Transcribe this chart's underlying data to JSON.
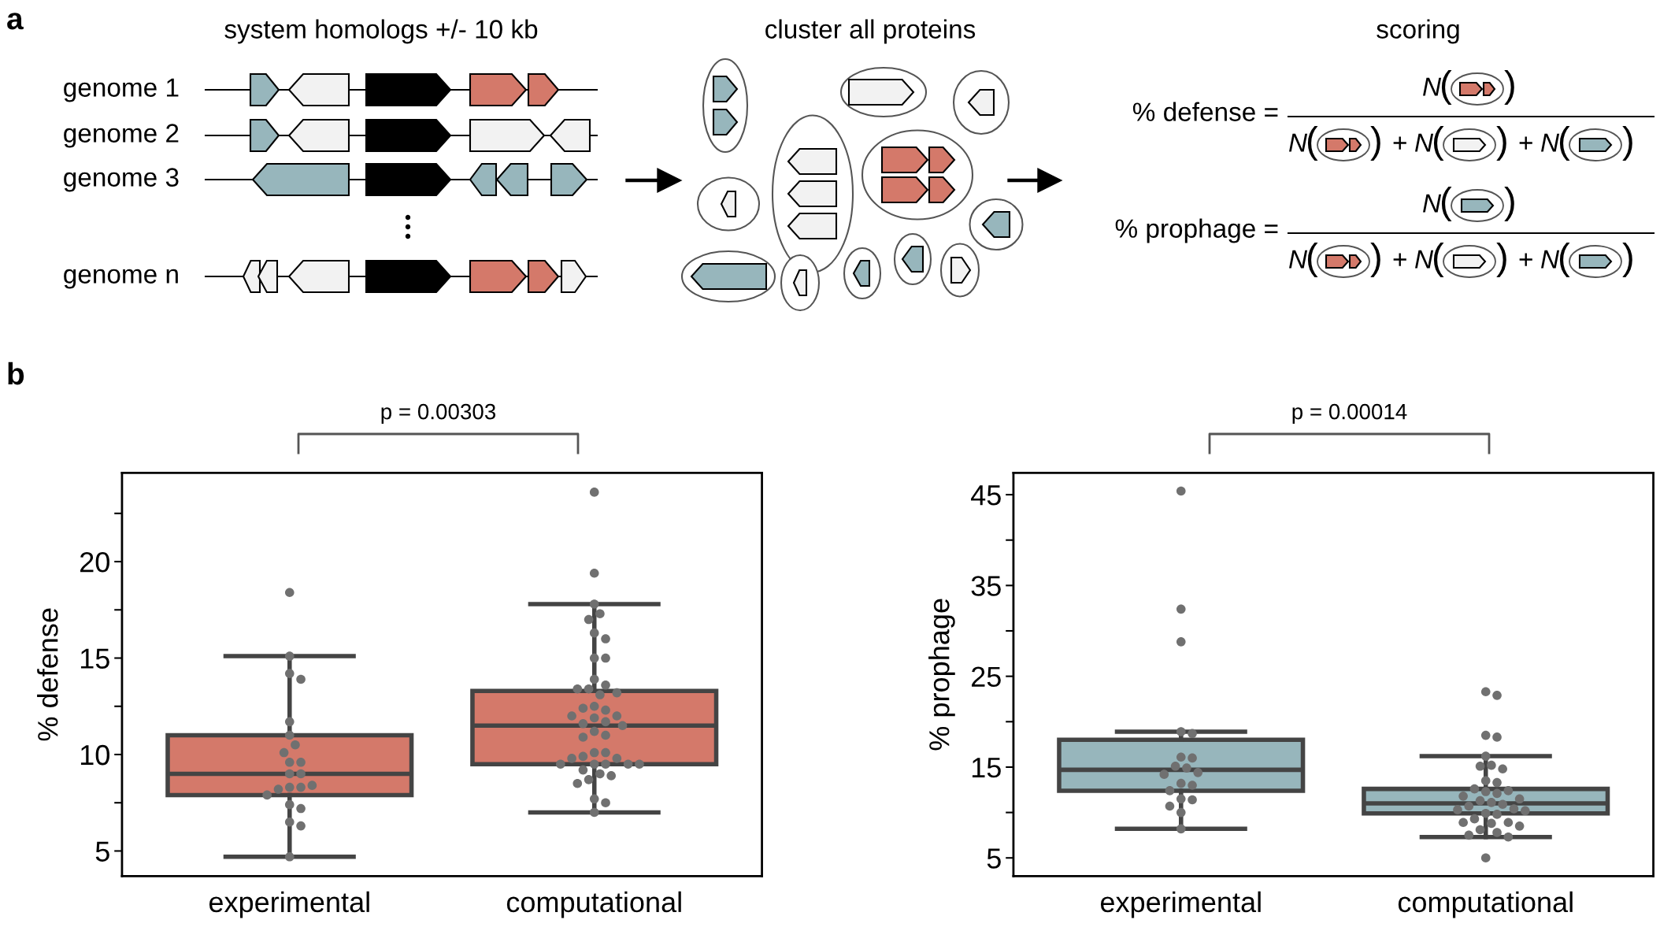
{
  "chart_data": [
    {
      "type": "other",
      "annotations": [
        "a",
        "system homologs +/- 10 kb",
        "genome 1",
        "genome 2",
        "genome 3",
        "genome n",
        "cluster all proteins",
        "scoring",
        "% defense =",
        "% prophage =",
        "N",
        "(",
        ")",
        "+"
      ]
    },
    {
      "type": "box",
      "ylabel": "% defense",
      "categories": [
        "experimental",
        "computational"
      ],
      "ylim": [
        3.7,
        24.6
      ],
      "yticks": [
        5,
        {
          "value": 7.5,
          "label": null
        },
        10,
        {
          "value": 12.5,
          "label": null
        },
        15,
        {
          "value": 17.5,
          "label": null
        },
        20,
        {
          "value": 22.5,
          "label": null
        }
      ],
      "grid": false,
      "marker": "circle",
      "annotations": [
        "b",
        "p = 0.00303"
      ],
      "series": [
        {
          "type": "box",
          "color": "#d4796a",
          "boxes": [
            {
              "low": 4.7,
              "q1": 7.9,
              "median": 9.0,
              "q3": 11.0,
              "high": 15.1
            },
            {
              "low": 7.0,
              "q1": 9.5,
              "median": 11.5,
              "q3": 13.3,
              "high": 17.8
            }
          ]
        },
        {
          "type": "scatter",
          "color": "#707070",
          "x": [
            "experimental",
            "experimental",
            "experimental",
            "experimental",
            "experimental",
            "experimental",
            "experimental",
            "experimental",
            "experimental",
            "experimental",
            "experimental",
            "experimental",
            "experimental",
            "experimental",
            "experimental",
            "experimental",
            "experimental",
            "experimental",
            "experimental",
            "experimental",
            "experimental",
            "experimental"
          ],
          "values": [
            18.4,
            15.1,
            14.2,
            13.9,
            11.7,
            11.0,
            10.5,
            10.1,
            9.6,
            9.6,
            9.0,
            9.0,
            8.3,
            8.3,
            8.2,
            8.4,
            7.9,
            7.4,
            7.2,
            6.5,
            6.3,
            4.7
          ]
        },
        {
          "type": "scatter",
          "color": "#707070",
          "x": [
            "computational",
            "computational",
            "computational",
            "computational",
            "computational",
            "computational",
            "computational",
            "computational",
            "computational",
            "computational",
            "computational",
            "computational",
            "computational",
            "computational",
            "computational",
            "computational",
            "computational",
            "computational",
            "computational",
            "computational",
            "computational",
            "computational",
            "computational",
            "computational",
            "computational",
            "computational",
            "computational",
            "computational",
            "computational",
            "computational",
            "computational",
            "computational",
            "computational",
            "computational",
            "computational",
            "computational",
            "computational",
            "computational",
            "computational",
            "computational",
            "computational",
            "computational",
            "computational",
            "computational",
            "computational"
          ],
          "values": [
            23.6,
            19.4,
            17.8,
            17.3,
            17.0,
            16.3,
            16.0,
            15.0,
            15.0,
            13.9,
            13.6,
            13.4,
            13.4,
            13.2,
            13.1,
            12.5,
            12.3,
            12.4,
            12.0,
            11.9,
            12.0,
            11.7,
            11.6,
            11.5,
            11.2,
            11.0,
            10.9,
            10.1,
            10.1,
            9.9,
            9.8,
            9.8,
            9.5,
            9.5,
            9.5,
            9.5,
            9.5,
            9.2,
            9.0,
            8.9,
            8.7,
            8.5,
            7.7,
            7.5,
            7.0
          ]
        }
      ]
    },
    {
      "type": "box",
      "ylabel": "% prophage",
      "categories": [
        "experimental",
        "computational"
      ],
      "ylim": [
        3.0,
        47.4
      ],
      "yticks": [
        5,
        {
          "value": 10,
          "label": null
        },
        15,
        {
          "value": 20,
          "label": null
        },
        25,
        {
          "value": 30,
          "label": null
        },
        35,
        {
          "value": 40,
          "label": null
        },
        45
      ],
      "grid": false,
      "marker": "circle",
      "annotations": [
        "p = 0.00014"
      ],
      "series": [
        {
          "type": "box",
          "color": "#97b6bc",
          "boxes": [
            {
              "low": 8.2,
              "q1": 12.4,
              "median": 14.7,
              "q3": 18.0,
              "high": 18.9
            },
            {
              "low": 7.3,
              "q1": 9.9,
              "median": 11.0,
              "q3": 12.6,
              "high": 16.2
            }
          ]
        },
        {
          "type": "scatter",
          "color": "#707070",
          "x": [
            "experimental",
            "experimental",
            "experimental",
            "experimental",
            "experimental",
            "experimental",
            "experimental",
            "experimental",
            "experimental",
            "experimental",
            "experimental",
            "experimental",
            "experimental",
            "experimental",
            "experimental",
            "experimental",
            "experimental",
            "experimental",
            "experimental"
          ],
          "values": [
            45.4,
            32.4,
            28.8,
            18.9,
            18.7,
            16.1,
            16.0,
            15.1,
            14.9,
            14.4,
            14.2,
            13.2,
            13.0,
            12.4,
            11.5,
            11.4,
            10.7,
            10.0,
            8.2
          ]
        },
        {
          "type": "scatter",
          "color": "#707070",
          "x": [
            "computational",
            "computational",
            "computational",
            "computational",
            "computational",
            "computational",
            "computational",
            "computational",
            "computational",
            "computational",
            "computational",
            "computational",
            "computational",
            "computational",
            "computational",
            "computational",
            "computational",
            "computational",
            "computational",
            "computational",
            "computational",
            "computational",
            "computational",
            "computational",
            "computational",
            "computational",
            "computational",
            "computational",
            "computational",
            "computational",
            "computational",
            "computational",
            "computational",
            "computational",
            "computational"
          ],
          "values": [
            23.3,
            22.9,
            18.5,
            18.3,
            16.2,
            15.2,
            15.1,
            14.8,
            13.5,
            13.3,
            12.6,
            12.4,
            12.3,
            12.1,
            11.8,
            11.5,
            11.3,
            11.1,
            10.9,
            10.7,
            10.4,
            10.3,
            10.2,
            9.9,
            9.8,
            9.3,
            8.9,
            8.9,
            8.8,
            8.5,
            8.1,
            7.8,
            7.5,
            7.3,
            5.0
          ]
        }
      ]
    }
  ]
}
